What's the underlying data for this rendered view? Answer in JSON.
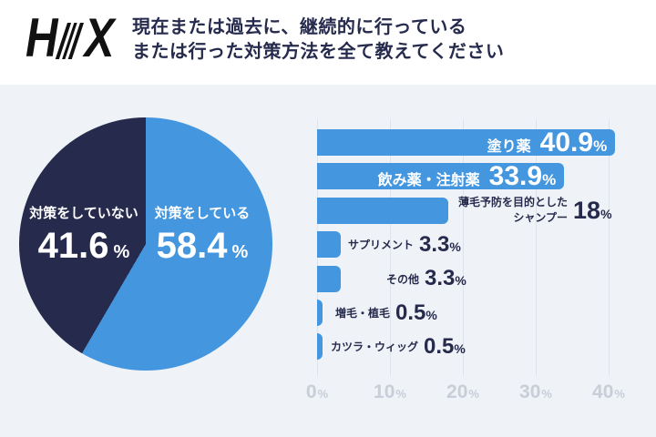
{
  "header": {
    "logo": {
      "left": "H",
      "right": "X"
    },
    "title_line1": "現在または過去に、継続的に行っている",
    "title_line2": "または行った対策方法を全て教えてください"
  },
  "colors": {
    "blue": "#4496df",
    "navy": "#262b4d",
    "bg": "#eff2f7",
    "grid": "#dee2ea",
    "tick": "#c8cdd8",
    "white": "#ffffff",
    "logo": "#111111"
  },
  "chart_data": [
    {
      "type": "pie",
      "unit": "%",
      "slices": [
        {
          "label": "対策をしている",
          "value": 58.4,
          "display": "58.4",
          "color": "#4496df"
        },
        {
          "label": "対策をしていない",
          "value": 41.6,
          "display": "41.6",
          "color": "#262b4d"
        }
      ],
      "legend_position": "inside"
    },
    {
      "type": "bar",
      "orientation": "horizontal",
      "bar_color": "#4496df",
      "xlim": [
        0,
        40
      ],
      "ticks": [
        "0",
        "10",
        "20",
        "30",
        "40"
      ],
      "tick_unit": "%",
      "grid": true,
      "bars": [
        {
          "label": "塗り薬",
          "value": 40.9,
          "display": "40.9",
          "inside": true
        },
        {
          "label": "飲み薬・注射薬",
          "value": 33.9,
          "display": "33.9",
          "inside": true
        },
        {
          "label": "薄毛予防を目的としたシャンプー",
          "label_lines": [
            "薄毛予防を目的とした",
            "シャンプー"
          ],
          "value": 18,
          "display": "18",
          "inside": false
        },
        {
          "label": "サプリメント",
          "value": 3.3,
          "display": "3.3",
          "inside": false
        },
        {
          "label": "その他",
          "value": 3.3,
          "display": "3.3",
          "inside": false
        },
        {
          "label": "増毛・植毛",
          "value": 0.5,
          "display": "0.5",
          "inside": false
        },
        {
          "label": "カツラ・ウィッグ",
          "value": 0.5,
          "display": "0.5",
          "inside": false
        }
      ]
    }
  ]
}
